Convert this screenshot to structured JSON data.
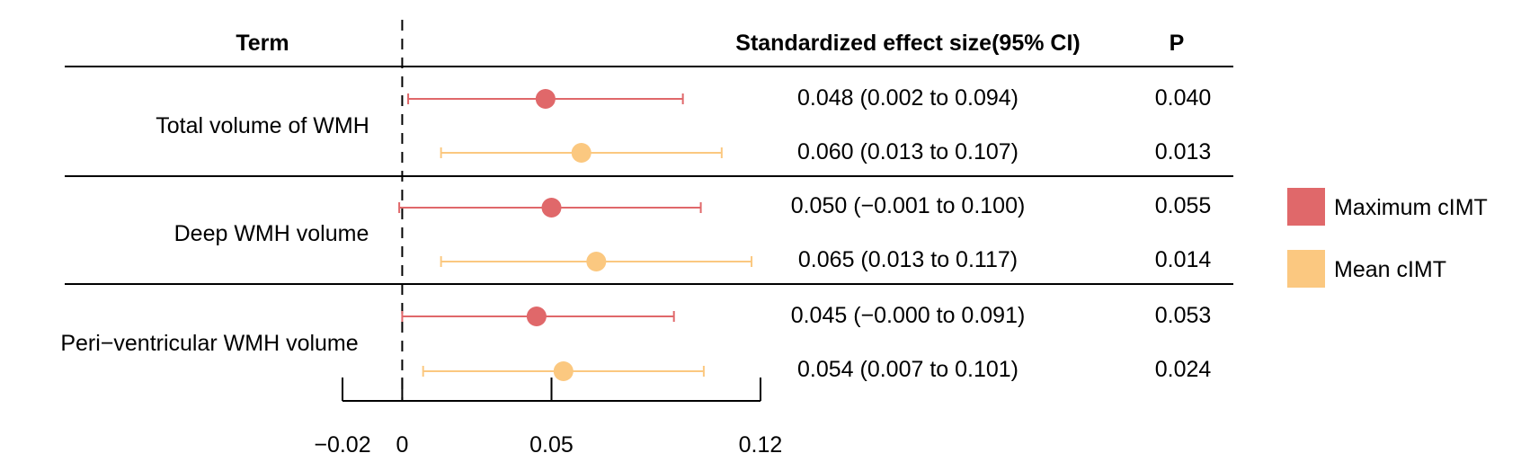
{
  "header": {
    "term": "Term",
    "effect": "Standardized effect size(95% CI)",
    "p": "P"
  },
  "chart_data": {
    "type": "forest",
    "xaxis": {
      "range": [
        -0.02,
        0.12
      ],
      "ticks": [
        -0.02,
        0,
        0.05,
        0.12
      ],
      "tick_labels": [
        "−0.02",
        "0",
        "0.05",
        "0.12"
      ],
      "reference_line": 0
    },
    "groups": [
      {
        "term": "Total volume of WMH",
        "rows": [
          {
            "series": "Maximum cIMT",
            "estimate": 0.048,
            "lower": 0.002,
            "upper": 0.094,
            "ci_text": "0.048 (0.002 to 0.094)",
            "p": "0.040"
          },
          {
            "series": "Mean cIMT",
            "estimate": 0.06,
            "lower": 0.013,
            "upper": 0.107,
            "ci_text": "0.060 (0.013 to 0.107)",
            "p": "0.013"
          }
        ]
      },
      {
        "term": "Deep WMH volume",
        "rows": [
          {
            "series": "Maximum cIMT",
            "estimate": 0.05,
            "lower": -0.001,
            "upper": 0.1,
            "ci_text": "0.050 (−0.001 to 0.100)",
            "p": "0.055"
          },
          {
            "series": "Mean cIMT",
            "estimate": 0.065,
            "lower": 0.013,
            "upper": 0.117,
            "ci_text": "0.065 (0.013 to 0.117)",
            "p": "0.014"
          }
        ]
      },
      {
        "term": "Peri−ventricular WMH volume",
        "rows": [
          {
            "series": "Maximum cIMT",
            "estimate": 0.045,
            "lower": -0.0,
            "upper": 0.091,
            "ci_text": "0.045 (−0.000 to 0.091)",
            "p": "0.053"
          },
          {
            "series": "Mean cIMT",
            "estimate": 0.054,
            "lower": 0.007,
            "upper": 0.101,
            "ci_text": "0.054 (0.007 to 0.101)",
            "p": "0.024"
          }
        ]
      }
    ],
    "legend": {
      "placement": "right",
      "items": [
        {
          "label": "Maximum cIMT",
          "color": "#E0686A"
        },
        {
          "label": "Mean cIMT",
          "color": "#FBC880"
        }
      ]
    }
  }
}
